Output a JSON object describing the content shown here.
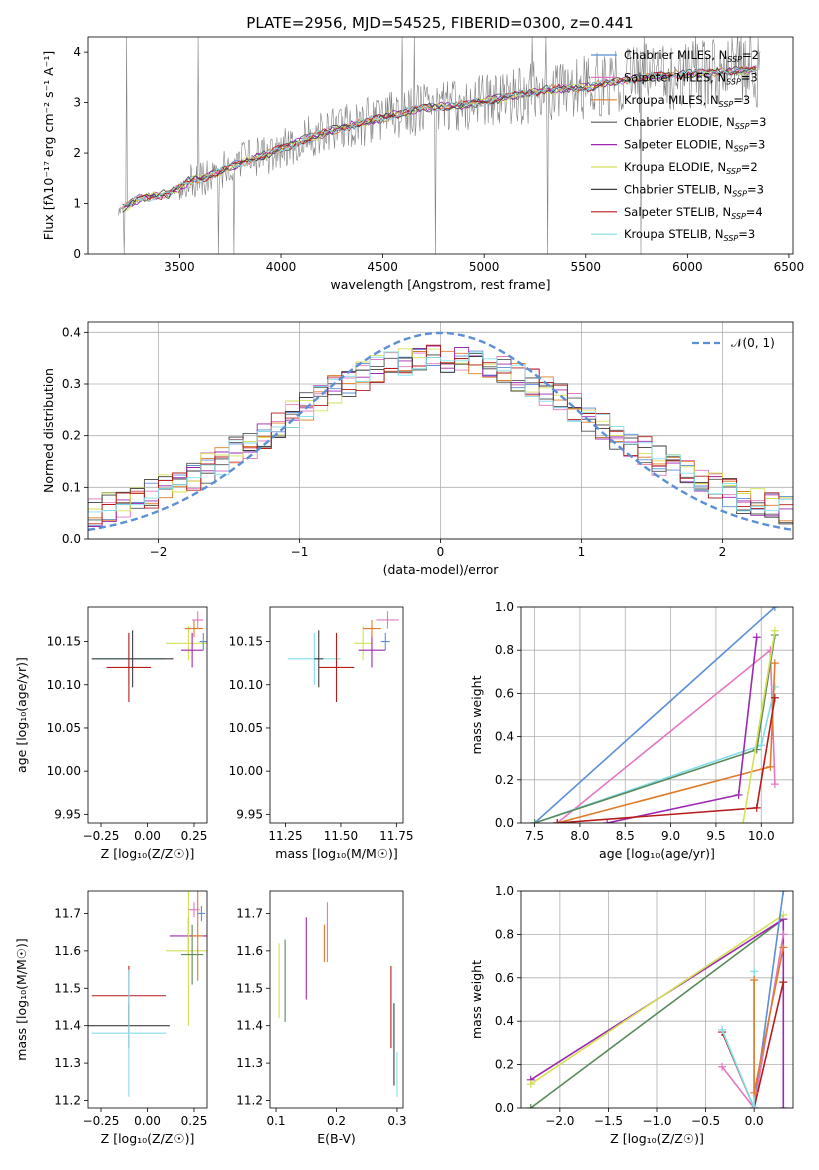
{
  "figure_title": "PLATE=2956, MJD=54525, FIBERID=0300, z=0.441",
  "colors": {
    "chabrier_miles": "#5b8fd6",
    "salpeter_miles": "#e377c2",
    "kroupa_miles": "#e07b28",
    "chabrier_elodie": "#555555",
    "salpeter_elodie": "#9c27b0",
    "kroupa_elodie": "#d4e157",
    "chabrier_stelib": "#3d3d3d",
    "salpeter_stelib": "#b71c1c",
    "kroupa_stelib": "#80deea",
    "green": "#5a8a5a",
    "gaussian": "#5b8fd6",
    "data_spectrum": "#808080",
    "grid": "#b0b0b0"
  },
  "chart_data": [
    {
      "id": "spectrum",
      "type": "line",
      "title": "PLATE=2956, MJD=54525, FIBERID=0300, z=0.441",
      "xlabel": "wavelength [Angstrom, rest frame]",
      "ylabel": "Flux [fλ10⁻¹⁷ erg cm⁻² s⁻¹ A⁻¹]",
      "xlim": [
        3050,
        6520
      ],
      "ylim": [
        0,
        4.3
      ],
      "xticks": [
        3500,
        4000,
        4500,
        5000,
        5500,
        6000,
        6500
      ],
      "yticks": [
        0,
        1,
        2,
        3,
        4
      ],
      "grid": false,
      "legend_position": "upper-right",
      "legend": [
        {
          "label": "Chabrier MILES, N_SSP=2",
          "text": "Chabrier MILES, N",
          "sub": "SSP",
          "suffix": "=2",
          "color_key": "chabrier_miles"
        },
        {
          "label": "Salpeter MILES, N_SSP=3",
          "text": "Salpeter MILES, N",
          "sub": "SSP",
          "suffix": "=3",
          "color_key": "salpeter_miles"
        },
        {
          "label": "Kroupa MILES, N_SSP=3",
          "text": "Kroupa MILES, N",
          "sub": "SSP",
          "suffix": "=3",
          "color_key": "kroupa_miles"
        },
        {
          "label": "Chabrier ELODIE, N_SSP=3",
          "text": "Chabrier ELODIE, N",
          "sub": "SSP",
          "suffix": "=3",
          "color_key": "chabrier_elodie"
        },
        {
          "label": "Salpeter ELODIE, N_SSP=3",
          "text": "Salpeter ELODIE, N",
          "sub": "SSP",
          "suffix": "=3",
          "color_key": "salpeter_elodie"
        },
        {
          "label": "Kroupa ELODIE, N_SSP=2",
          "text": "Kroupa ELODIE, N",
          "sub": "SSP",
          "suffix": "=2",
          "color_key": "kroupa_elodie"
        },
        {
          "label": "Chabrier STELIB, N_SSP=3",
          "text": "Chabrier STELIB, N",
          "sub": "SSP",
          "suffix": "=3",
          "color_key": "chabrier_stelib"
        },
        {
          "label": "Salpeter STELIB, N_SSP=4",
          "text": "Salpeter STELIB, N",
          "sub": "SSP",
          "suffix": "=4",
          "color_key": "salpeter_stelib"
        },
        {
          "label": "Kroupa STELIB, N_SSP=3",
          "text": "Kroupa STELIB, N",
          "sub": "SSP",
          "suffix": "=3",
          "color_key": "kroupa_stelib"
        }
      ],
      "continuum_anchors": {
        "wavelength": [
          3200,
          3300,
          3450,
          3550,
          3650,
          3800,
          3950,
          4100,
          4300,
          4500,
          4700,
          4900,
          5100,
          5300,
          5500,
          5700,
          5900,
          6100,
          6360
        ],
        "flux": [
          0.85,
          1.1,
          1.2,
          1.45,
          1.55,
          1.8,
          2.0,
          2.25,
          2.5,
          2.7,
          2.9,
          2.95,
          3.1,
          3.25,
          3.3,
          3.45,
          3.55,
          3.6,
          3.65
        ]
      }
    },
    {
      "id": "residuals",
      "type": "histogram",
      "xlabel": "(data-model)/error",
      "ylabel": "Normed distribution",
      "xlim": [
        -2.5,
        2.5
      ],
      "ylim": [
        0,
        0.42
      ],
      "xticks": [
        -2,
        -1,
        0,
        1,
        2
      ],
      "yticks": [
        0.0,
        0.1,
        0.2,
        0.3,
        0.4
      ],
      "grid": true,
      "legend_position": "upper-right",
      "legend": [
        {
          "label": "𝒩(0, 1)",
          "color_key": "gaussian",
          "dashed": true
        }
      ],
      "bin_width": 0.1
    },
    {
      "id": "age_vs_Z",
      "type": "errorbar",
      "xlabel": "Z [log₁₀(Z/Z☉)]",
      "ylabel": "age  [log₁₀(age/yr)]",
      "xlim": [
        -0.32,
        0.32
      ],
      "ylim": [
        9.94,
        10.19
      ],
      "xticks": [
        -0.25,
        0.0,
        0.25
      ],
      "yticks": [
        9.95,
        10.0,
        10.05,
        10.1,
        10.15
      ],
      "grid": false,
      "points": [
        {
          "color_key": "kroupa_stelib",
          "x": -0.1,
          "xerr": 0.2,
          "y": 10.13,
          "yerr": 0.03
        },
        {
          "color_key": "chabrier_stelib",
          "x": -0.08,
          "xerr": 0.22,
          "y": 10.13,
          "yerr": 0.033
        },
        {
          "color_key": "salpeter_stelib",
          "x": -0.1,
          "xerr": 0.12,
          "y": 10.12,
          "yerr": 0.04
        },
        {
          "color_key": "kroupa_elodie",
          "x": 0.22,
          "xerr": 0.12,
          "y": 10.148,
          "yerr": 0.02
        },
        {
          "color_key": "salpeter_elodie",
          "x": 0.24,
          "xerr": 0.06,
          "y": 10.14,
          "yerr": 0.02
        },
        {
          "color_key": "kroupa_miles",
          "x": 0.25,
          "xerr": 0.05,
          "y": 10.165,
          "yerr": 0.01
        },
        {
          "color_key": "salpeter_miles",
          "x": 0.27,
          "xerr": 0.03,
          "y": 10.175,
          "yerr": 0.01
        },
        {
          "color_key": "chabrier_miles",
          "x": 0.3,
          "xerr": 0.02,
          "y": 10.15,
          "yerr": 0.01
        }
      ]
    },
    {
      "id": "age_vs_mass",
      "type": "errorbar",
      "xlabel": "mass [log₁₀(M/M☉)]",
      "ylabel": "",
      "xlim": [
        11.18,
        11.78
      ],
      "ylim": [
        9.94,
        10.19
      ],
      "xticks": [
        11.25,
        11.5,
        11.75
      ],
      "yticks": [
        9.95,
        10.0,
        10.05,
        10.1,
        10.15
      ],
      "grid": false,
      "points": [
        {
          "color_key": "kroupa_stelib",
          "x": 11.38,
          "xerr": 0.12,
          "y": 10.13,
          "yerr": 0.03
        },
        {
          "color_key": "chabrier_stelib",
          "x": 11.4,
          "xerr": 0.02,
          "y": 10.13,
          "yerr": 0.033
        },
        {
          "color_key": "salpeter_stelib",
          "x": 11.48,
          "xerr": 0.08,
          "y": 10.12,
          "yerr": 0.04
        },
        {
          "color_key": "kroupa_elodie",
          "x": 11.6,
          "xerr": 0.04,
          "y": 10.148,
          "yerr": 0.02
        },
        {
          "color_key": "salpeter_elodie",
          "x": 11.64,
          "xerr": 0.06,
          "y": 10.14,
          "yerr": 0.02
        },
        {
          "color_key": "kroupa_miles",
          "x": 11.64,
          "xerr": 0.04,
          "y": 10.165,
          "yerr": 0.01
        },
        {
          "color_key": "salpeter_miles",
          "x": 11.71,
          "xerr": 0.05,
          "y": 10.175,
          "yerr": 0.01
        },
        {
          "color_key": "chabrier_miles",
          "x": 11.7,
          "xerr": 0.02,
          "y": 10.15,
          "yerr": 0.01
        }
      ]
    },
    {
      "id": "massweight_vs_age",
      "type": "line",
      "xlabel": "age  [log₁₀(age/yr)]",
      "ylabel": "mass weight",
      "xlim": [
        7.35,
        10.35
      ],
      "ylim": [
        0,
        1.0
      ],
      "xticks": [
        7.5,
        8.0,
        8.5,
        9.0,
        9.5,
        10.0
      ],
      "yticks": [
        0.0,
        0.2,
        0.4,
        0.6,
        0.8,
        1.0
      ],
      "grid": true,
      "series": [
        {
          "color_key": "chabrier_miles",
          "x": [
            7.5,
            10.15
          ],
          "y": [
            0.0,
            1.0
          ]
        },
        {
          "color_key": "salpeter_miles",
          "x": [
            7.75,
            10.1,
            10.15
          ],
          "y": [
            0.0,
            0.8,
            0.18
          ]
        },
        {
          "color_key": "kroupa_stelib",
          "x": [
            7.5,
            10.0,
            10.15
          ],
          "y": [
            0.0,
            0.36,
            0.63
          ]
        },
        {
          "color_key": "green",
          "x": [
            7.5,
            9.95,
            10.15
          ],
          "y": [
            0.0,
            0.34,
            0.87
          ]
        },
        {
          "color_key": "kroupa_miles",
          "x": [
            7.75,
            10.1,
            10.15
          ],
          "y": [
            0.0,
            0.26,
            0.74
          ]
        },
        {
          "color_key": "salpeter_elodie",
          "x": [
            8.3,
            9.75,
            9.95
          ],
          "y": [
            0.0,
            0.13,
            0.86
          ]
        },
        {
          "color_key": "salpeter_stelib",
          "x": [
            7.75,
            9.95,
            10.15
          ],
          "y": [
            0.0,
            0.07,
            0.58
          ]
        },
        {
          "color_key": "kroupa_elodie",
          "x": [
            9.8,
            10.15
          ],
          "y": [
            0.0,
            0.89
          ]
        }
      ]
    },
    {
      "id": "mass_vs_Z",
      "type": "errorbar",
      "xlabel": "Z [log₁₀(Z/Z☉)]",
      "ylabel": "mass [log₁₀(M/M☉)]",
      "xlim": [
        -0.32,
        0.32
      ],
      "ylim": [
        11.18,
        11.76
      ],
      "xticks": [
        -0.25,
        0.0,
        0.25
      ],
      "yticks": [
        11.2,
        11.3,
        11.4,
        11.5,
        11.6,
        11.7
      ],
      "grid": false,
      "points": [
        {
          "color_key": "salpeter_stelib",
          "x": -0.1,
          "xerr": 0.2,
          "y": 11.48,
          "yerr": 0.08
        },
        {
          "color_key": "chabrier_stelib",
          "x": -0.1,
          "xerr": 0.22,
          "y": 11.4,
          "yerr": 0.06
        },
        {
          "color_key": "kroupa_stelib",
          "x": -0.1,
          "xerr": 0.2,
          "y": 11.38,
          "yerr": 0.17
        },
        {
          "color_key": "salpeter_elodie",
          "x": 0.22,
          "xerr": 0.1,
          "y": 11.64,
          "yerr": 0.05
        },
        {
          "color_key": "kroupa_elodie",
          "x": 0.22,
          "xerr": 0.12,
          "y": 11.6,
          "yerr": 0.2
        },
        {
          "color_key": "green",
          "x": 0.24,
          "xerr": 0.06,
          "y": 11.59,
          "yerr": 0.08
        },
        {
          "color_key": "kroupa_miles",
          "x": 0.27,
          "xerr": 0.03,
          "y": 11.64,
          "yerr": 0.12
        },
        {
          "color_key": "salpeter_miles",
          "x": 0.25,
          "xerr": 0.03,
          "y": 11.71,
          "yerr": 0.02
        },
        {
          "color_key": "chabrier_miles",
          "x": 0.29,
          "xerr": 0.02,
          "y": 11.7,
          "yerr": 0.02
        }
      ]
    },
    {
      "id": "mass_vs_EBV",
      "type": "errorbar",
      "xlabel": "E(B-V)",
      "ylabel": "",
      "xlim": [
        0.09,
        0.31
      ],
      "ylim": [
        11.18,
        11.76
      ],
      "xticks": [
        0.1,
        0.2,
        0.3
      ],
      "yticks": [
        11.2,
        11.3,
        11.4,
        11.5,
        11.6,
        11.7
      ],
      "grid": false,
      "points": [
        {
          "color_key": "kroupa_elodie",
          "x": 0.105,
          "xerr": 0,
          "y": 11.52,
          "yerr": 0.1
        },
        {
          "color_key": "green",
          "x": 0.115,
          "xerr": 0,
          "y": 11.52,
          "yerr": 0.11
        },
        {
          "color_key": "salpeter_elodie",
          "x": 0.15,
          "xerr": 0,
          "y": 11.58,
          "yerr": 0.11
        },
        {
          "color_key": "kroupa_miles",
          "x": 0.18,
          "xerr": 0,
          "y": 11.62,
          "yerr": 0.05
        },
        {
          "color_key": "salpeter_miles",
          "x": 0.185,
          "xerr": 0,
          "y": 11.65,
          "yerr": 0.08
        },
        {
          "color_key": "salpeter_stelib",
          "x": 0.29,
          "xerr": 0,
          "y": 11.45,
          "yerr": 0.11
        },
        {
          "color_key": "chabrier_stelib",
          "x": 0.295,
          "xerr": 0,
          "y": 11.35,
          "yerr": 0.11
        },
        {
          "color_key": "kroupa_stelib",
          "x": 0.3,
          "xerr": 0,
          "y": 11.27,
          "yerr": 0.06
        }
      ]
    },
    {
      "id": "massweight_vs_Z",
      "type": "line",
      "xlabel": "Z [log₁₀(Z/Z☉)]",
      "ylabel": "mass weight",
      "xlim": [
        -2.4,
        0.4
      ],
      "ylim": [
        0,
        1.0
      ],
      "xticks": [
        -2.0,
        -1.5,
        -1.0,
        -0.5,
        0.0
      ],
      "yticks": [
        0.0,
        0.2,
        0.4,
        0.6,
        0.8,
        1.0
      ],
      "grid": true,
      "series": [
        {
          "color_key": "green",
          "x": [
            -2.3,
            0.3
          ],
          "y": [
            0.0,
            0.87
          ]
        },
        {
          "color_key": "salpeter_elodie",
          "x": [
            -2.3,
            0.3,
            0.3
          ],
          "y": [
            0.13,
            0.87,
            0.0
          ]
        },
        {
          "color_key": "kroupa_elodie",
          "x": [
            -2.3,
            0.3
          ],
          "y": [
            0.11,
            0.89
          ]
        },
        {
          "color_key": "chabrier_miles",
          "x": [
            0.0,
            0.3
          ],
          "y": [
            0.0,
            1.0
          ]
        },
        {
          "color_key": "salpeter_miles",
          "x": [
            -0.33,
            0.0,
            0.3
          ],
          "y": [
            0.19,
            0.0,
            0.8
          ]
        },
        {
          "color_key": "salpeter_stelib",
          "x": [
            -0.33,
            0.0,
            0.3
          ],
          "y": [
            0.35,
            0.0,
            0.58
          ]
        },
        {
          "color_key": "kroupa_stelib",
          "x": [
            -0.33,
            0.0,
            0.0
          ],
          "y": [
            0.36,
            0.0,
            0.63
          ]
        },
        {
          "color_key": "kroupa_miles",
          "x": [
            0.0,
            0.0,
            0.3
          ],
          "y": [
            0.59,
            0.07,
            0.74
          ]
        }
      ]
    }
  ]
}
